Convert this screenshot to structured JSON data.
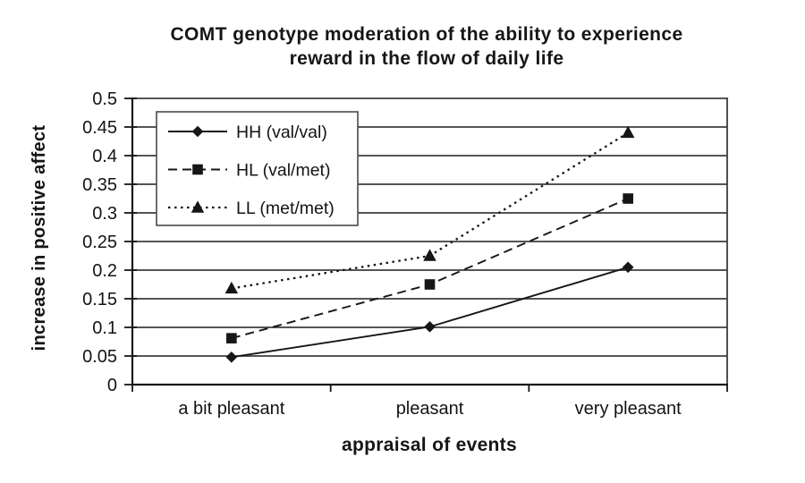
{
  "chart_data": {
    "type": "line",
    "title": "COMT genotype moderation of the ability to experience reward in the flow of daily life",
    "title_lines": [
      "COMT genotype moderation of the ability to experience",
      "reward in the flow of daily life"
    ],
    "xlabel": "appraisal of events",
    "ylabel": "increase in positive affect",
    "categories": [
      "a bit pleasant",
      "pleasant",
      "very pleasant"
    ],
    "series": [
      {
        "name": "HH (val/val)",
        "line_style": "solid",
        "marker": "diamond",
        "values": [
          0.048,
          0.101,
          0.205
        ]
      },
      {
        "name": "HL (val/met)",
        "line_style": "dashed",
        "marker": "square",
        "values": [
          0.081,
          0.175,
          0.325
        ]
      },
      {
        "name": "LL (met/met)",
        "line_style": "dotted",
        "marker": "triangle",
        "values": [
          0.168,
          0.225,
          0.44
        ]
      }
    ],
    "ylim": [
      0,
      0.5
    ],
    "ytick_step": 0.05,
    "ytick_labels": [
      "0",
      "0.05",
      "0.1",
      "0.15",
      "0.2",
      "0.25",
      "0.3",
      "0.35",
      "0.4",
      "0.45",
      "0.5"
    ],
    "grid": true,
    "legend_position": "upper-left-inside",
    "colors": {
      "line": "#161616",
      "grid": "#3d3d3d",
      "axis": "#161616",
      "background": "#ffffff",
      "legend_border": "#4a4a4a"
    }
  }
}
